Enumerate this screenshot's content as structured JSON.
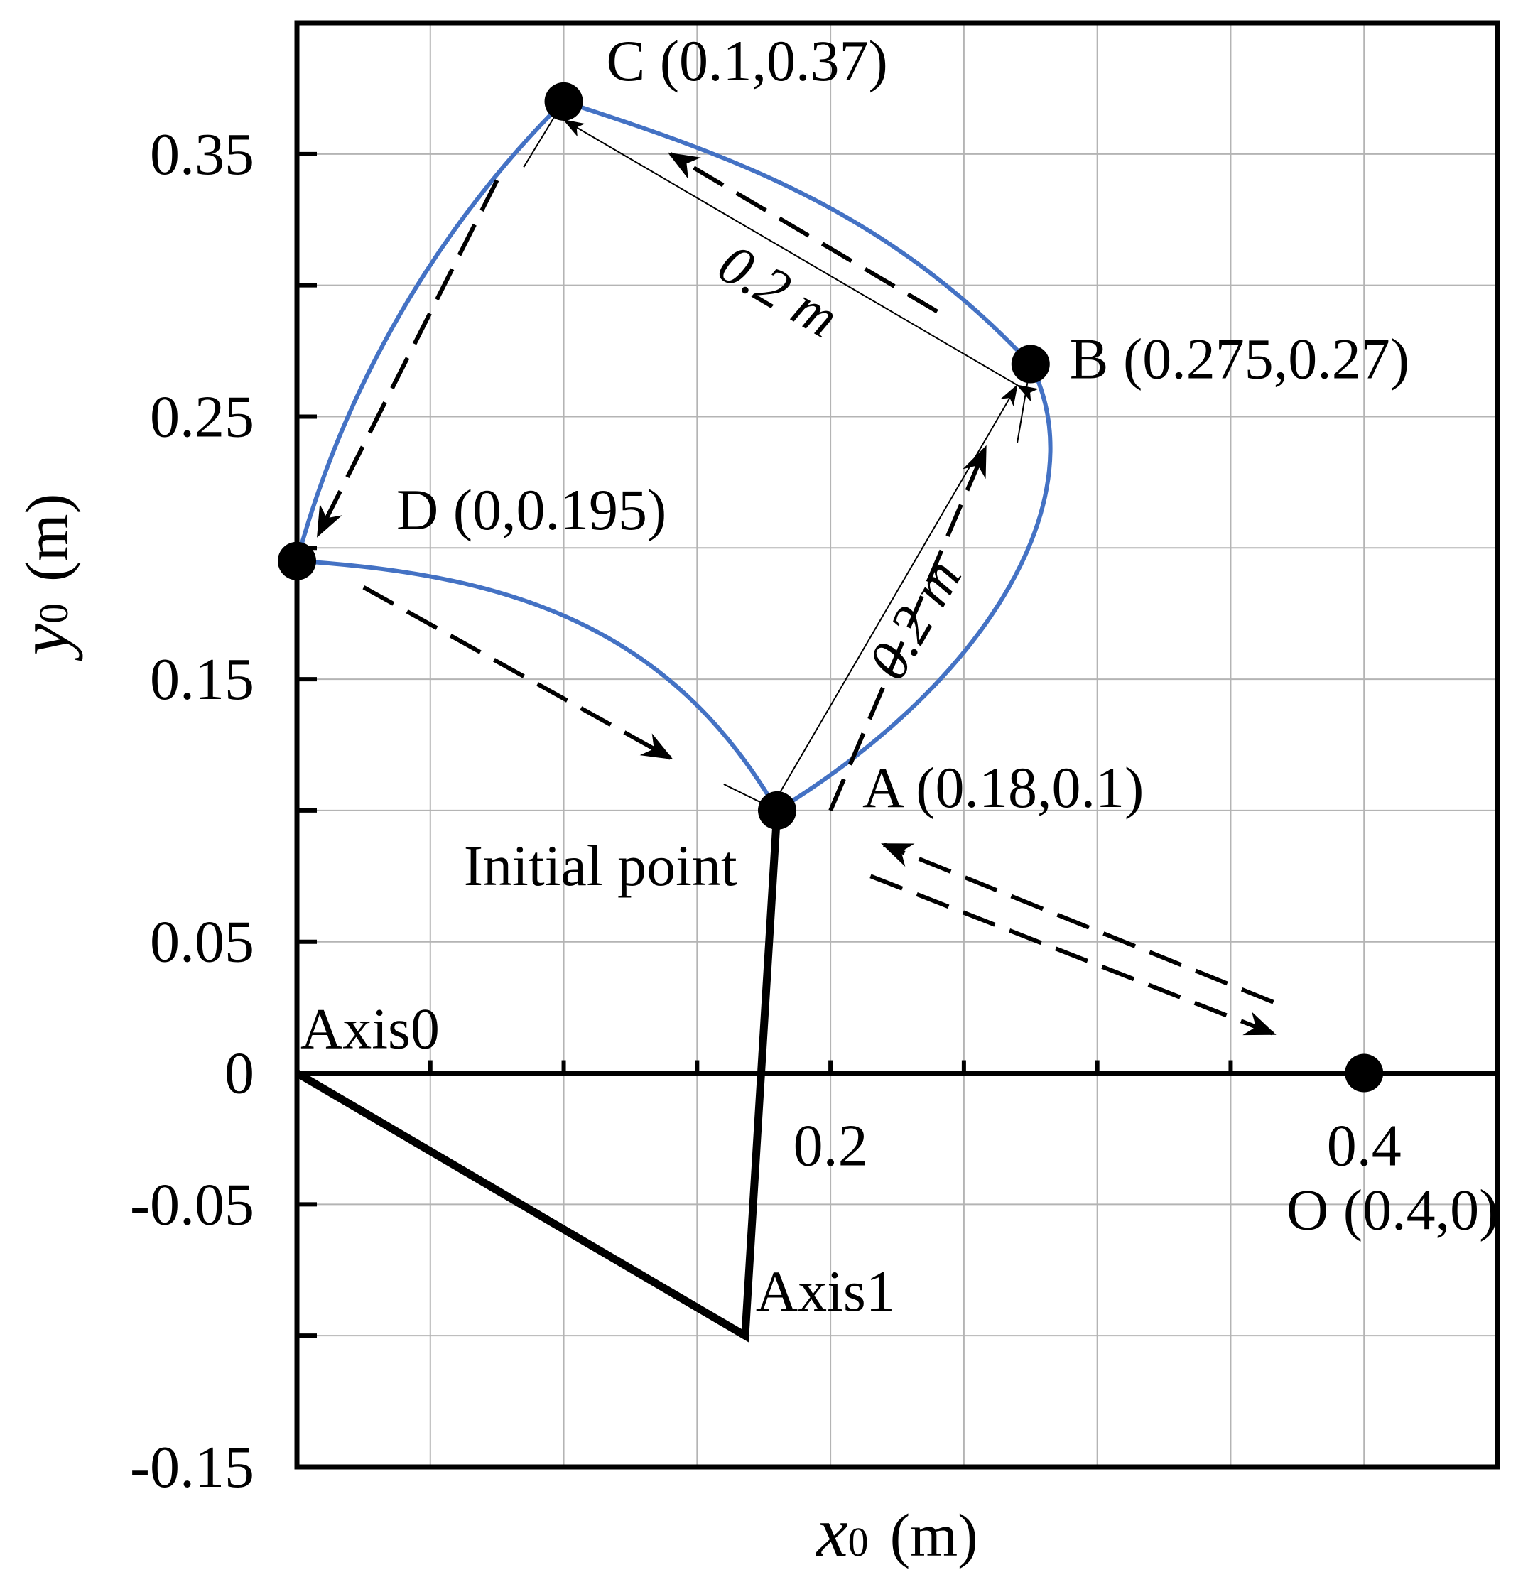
{
  "chart_data": {
    "type": "scatter",
    "title": "",
    "xlabel": {
      "var": "x",
      "sub": "0",
      "unit": "(m)"
    },
    "ylabel": {
      "var": "y",
      "sub": "0",
      "unit": "(m)"
    },
    "xlim": [
      0,
      0.45
    ],
    "ylim": [
      -0.15,
      0.4
    ],
    "x_ticks": [
      {
        "value": 0.2,
        "label": "0.2"
      },
      {
        "value": 0.4,
        "label": "0.4"
      }
    ],
    "x_minor_ticks": [
      0.05,
      0.1,
      0.15,
      0.2,
      0.25,
      0.3,
      0.35,
      0.4
    ],
    "y_ticks": [
      {
        "value": 0.35,
        "label": "0.35"
      },
      {
        "value": 0.25,
        "label": "0.25"
      },
      {
        "value": 0.15,
        "label": "0.15"
      },
      {
        "value": 0.05,
        "label": "0.05"
      },
      {
        "value": 0,
        "label": "0"
      },
      {
        "value": -0.05,
        "label": "-0.05"
      },
      {
        "value": -0.15,
        "label": "-0.15"
      }
    ],
    "y_minor_ticks": [
      0.35,
      0.3,
      0.25,
      0.2,
      0.15,
      0.1,
      0.05,
      -0.05,
      -0.1
    ],
    "grid": true,
    "grid_step": 0.05,
    "colors": {
      "trajectory": "#4472C4",
      "arm": "#000000",
      "grid": "#b4b4b4"
    },
    "points": [
      {
        "id": "A",
        "label": "A (0.18,0.1)",
        "x": 0.18,
        "y": 0.1
      },
      {
        "id": "B",
        "label": "B (0.275,0.27)",
        "x": 0.275,
        "y": 0.27
      },
      {
        "id": "C",
        "label": "C (0.1,0.37)",
        "x": 0.1,
        "y": 0.37
      },
      {
        "id": "D",
        "label": "D (0,0.195)",
        "x": 0.0,
        "y": 0.195
      },
      {
        "id": "O",
        "label": "O (0.4,0)",
        "x": 0.4,
        "y": 0.0
      }
    ],
    "trajectory_segments": [
      {
        "from": "A",
        "to": "B",
        "ctrl": [
          [
            0.26,
            0.15
          ],
          [
            0.3,
            0.22
          ]
        ]
      },
      {
        "from": "B",
        "to": "C",
        "ctrl": [
          [
            0.22,
            0.33
          ],
          [
            0.16,
            0.35
          ]
        ]
      },
      {
        "from": "C",
        "to": "D",
        "ctrl": [
          [
            0.06,
            0.33
          ],
          [
            0.02,
            0.27
          ]
        ]
      },
      {
        "from": "D",
        "to": "A",
        "ctrl": [
          [
            0.08,
            0.19
          ],
          [
            0.14,
            0.17
          ]
        ]
      }
    ],
    "arm": [
      {
        "label": "Axis0",
        "x": 0.0,
        "y": 0.0
      },
      {
        "label": "Axis1",
        "x": 0.168,
        "y": -0.1
      },
      {
        "label": "",
        "x": 0.18,
        "y": 0.1
      }
    ],
    "direction_arrows": [
      {
        "from": [
          0.2,
          0.1
        ],
        "to": [
          0.258,
          0.238
        ]
      },
      {
        "from": [
          0.24,
          0.29
        ],
        "to": [
          0.14,
          0.35
        ]
      },
      {
        "from": [
          0.075,
          0.34
        ],
        "to": [
          0.008,
          0.205
        ]
      },
      {
        "from": [
          0.025,
          0.185
        ],
        "to": [
          0.14,
          0.12
        ]
      },
      {
        "from": [
          0.366,
          0.027
        ],
        "to": [
          0.22,
          0.087
        ]
      },
      {
        "from": [
          0.215,
          0.075
        ],
        "to": [
          0.366,
          0.015
        ]
      }
    ],
    "dimension_lines": [
      {
        "from": [
          0.18,
          0.105
        ],
        "to": [
          0.27,
          0.262
        ],
        "label": "0.2 m"
      },
      {
        "from": [
          0.27,
          0.262
        ],
        "to": [
          0.1,
          0.363
        ],
        "label": "0.2 m"
      }
    ],
    "initial_point_label": "Initial point"
  }
}
